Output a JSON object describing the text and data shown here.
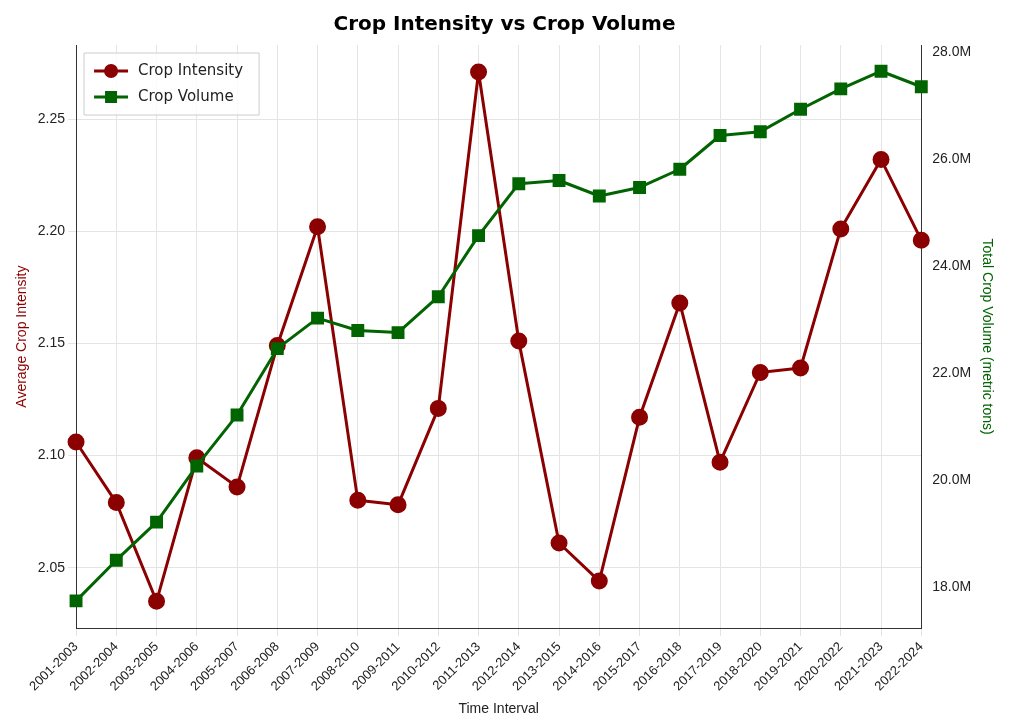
{
  "chart_data": {
    "type": "line",
    "title": "Crop Intensity vs Crop Volume",
    "xlabel": "Time Interval",
    "ylabel": "Average Crop Intensity",
    "y2label": "Total Crop Volume (metric tons)",
    "categories": [
      "2001-2003",
      "2002-2004",
      "2003-2005",
      "2004-2006",
      "2005-2007",
      "2006-2008",
      "2007-2009",
      "2008-2010",
      "2009-2011",
      "2010-2012",
      "2011-2013",
      "2012-2014",
      "2013-2015",
      "2014-2016",
      "2015-2017",
      "2016-2018",
      "2017-2019",
      "2018-2020",
      "2019-2021",
      "2020-2022",
      "2021-2023",
      "2022-2024"
    ],
    "series": [
      {
        "name": "Crop Intensity",
        "color": "#8b0000",
        "marker": "circle",
        "values": [
          2.106,
          2.079,
          2.035,
          2.099,
          2.086,
          2.149,
          2.202,
          2.08,
          2.078,
          2.121,
          2.271,
          2.151,
          2.061,
          2.044,
          2.117,
          2.168,
          2.097,
          2.137,
          2.139,
          2.201,
          2.232,
          2.196
        ]
      },
      {
        "name": "Crop Volume",
        "color": "#006400",
        "marker": "square",
        "axis": "y2",
        "values": [
          17750000,
          18510000,
          19220000,
          20270000,
          21220000,
          22460000,
          23030000,
          22800000,
          22760000,
          23430000,
          24570000,
          25540000,
          25600000,
          25310000,
          25470000,
          25810000,
          26440000,
          26510000,
          26930000,
          27310000,
          27640000,
          27350000
        ]
      }
    ],
    "ylim": [
      2.023,
      2.283
    ],
    "yticks": [
      2.05,
      {
        "value": 2.1,
        "label": "2.10"
      },
      2.15,
      {
        "value": 2.2,
        "label": "2.20"
      },
      2.25
    ],
    "y2lim": [
      17240000,
      28130000
    ],
    "y2ticks": [
      {
        "value": 18000000,
        "label": "18.0M"
      },
      {
        "value": 20000000,
        "label": "20.0M"
      },
      {
        "value": 22000000,
        "label": "22.0M"
      },
      {
        "value": 24000000,
        "label": "24.0M"
      },
      {
        "value": 26000000,
        "label": "26.0M"
      },
      {
        "value": 28000000,
        "label": "28.0M"
      }
    ],
    "grid": true,
    "legend": "top left",
    "line_style": "solid"
  }
}
